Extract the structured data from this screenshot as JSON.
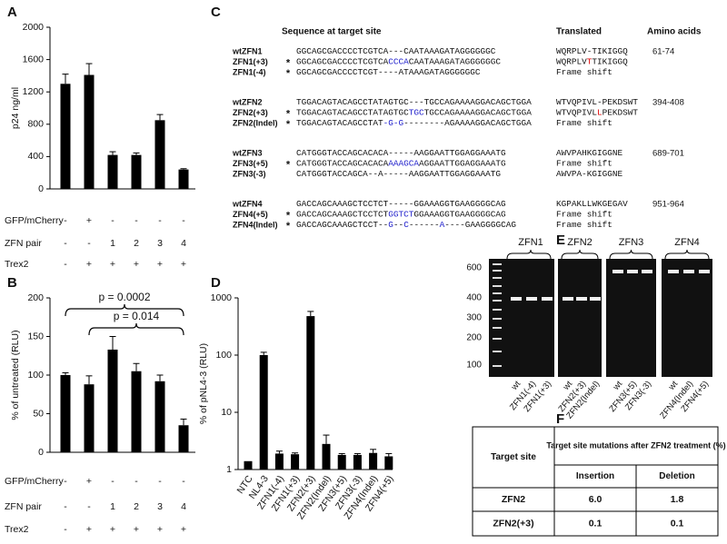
{
  "chart_data": [
    {
      "panel": "A",
      "type": "bar",
      "ylabel": "p24 ng/ml",
      "color": "#000000",
      "values": [
        1300,
        1410,
        420,
        420,
        850,
        240
      ],
      "errors": [
        120,
        140,
        40,
        25,
        70,
        10
      ],
      "ylim": [
        0,
        2000
      ],
      "yticks": [
        0,
        400,
        800,
        1200,
        1600,
        2000
      ],
      "conditions": [
        {
          "name": "GFP/mCherry",
          "values": [
            "-",
            "+",
            "-",
            "-",
            "-",
            "-"
          ]
        },
        {
          "name": "ZFN pair",
          "values": [
            "-",
            "-",
            "1",
            "2",
            "3",
            "4"
          ]
        },
        {
          "name": "Trex2",
          "values": [
            "-",
            "+",
            "+",
            "+",
            "+",
            "+"
          ]
        }
      ]
    },
    {
      "panel": "B",
      "type": "bar",
      "ylabel": "% of untreated (RLU)",
      "color": "#000000",
      "values": [
        100,
        88,
        133,
        105,
        92,
        35
      ],
      "errors": [
        3,
        11,
        17,
        10,
        8,
        8
      ],
      "ylim": [
        0,
        200
      ],
      "yticks": [
        0,
        50,
        100,
        150,
        200
      ],
      "brackets": [
        {
          "text": "p = 0.0002",
          "from": 0,
          "to": 5
        },
        {
          "text": "p = 0.014",
          "from": 1,
          "to": 5
        }
      ],
      "conditions": [
        {
          "name": "GFP/mCherry",
          "values": [
            "-",
            "+",
            "-",
            "-",
            "-",
            "-"
          ]
        },
        {
          "name": "ZFN pair",
          "values": [
            "-",
            "-",
            "1",
            "2",
            "3",
            "4"
          ]
        },
        {
          "name": "Trex2",
          "values": [
            "-",
            "+",
            "+",
            "+",
            "+",
            "+"
          ]
        }
      ]
    },
    {
      "panel": "D",
      "type": "bar",
      "ylabel": "% of pNL4-3 (RLU)",
      "color": "#000000",
      "log_scale": true,
      "categories": [
        "NTC",
        "NL4-3",
        "ZFN1(-4)",
        "ZFN1(+3)",
        "ZFN2(+3)",
        "ZFN2(Indel)",
        "ZFN3(+5)",
        "ZFN3(-3)",
        "ZFN4(Indel)",
        "ZFN4(+5)"
      ],
      "values": [
        1.4,
        100,
        1.9,
        1.85,
        480,
        2.8,
        1.8,
        1.8,
        1.95,
        1.7
      ],
      "errors": [
        null,
        12,
        0.2,
        0.1,
        100,
        1.2,
        0.1,
        0.1,
        0.3,
        0.2
      ],
      "ylim": [
        1,
        1000
      ],
      "yticks": [
        1,
        10,
        100,
        1000
      ]
    }
  ],
  "sequences": {
    "panel": "C",
    "headers": [
      "Sequence at target site",
      "Translated",
      "Amino acids"
    ],
    "groups": [
      {
        "rows": [
          {
            "name": "wtZFN1",
            "sequence": [
              "GGCAGCGACCCCTCGTCA---CAATAAAGATAGGGGGGC"
            ],
            "translated": [
              "WQRPLV-TIKIGGQ"
            ],
            "range": "61-74"
          },
          {
            "name": "ZFN1(+3)",
            "star": "*",
            "sequence": [
              "GGCAGCGACCCCTCGTCA",
              {
                "text": "CCCA",
                "color": "#2222cc"
              },
              "CAATAAAGATAGGGGGGC"
            ],
            "translated": [
              "WQRPLV",
              {
                "text": "T",
                "color": "#e00000"
              },
              "TIKIGGQ"
            ]
          },
          {
            "name": "ZFN1(-4)",
            "star": "*",
            "sequence": [
              "GGCAGCGACCCCTCGT----ATAAAGATAGGGGGGC"
            ],
            "translated": [
              "Frame shift"
            ]
          }
        ]
      },
      {
        "rows": [
          {
            "name": "wtZFN2",
            "sequence": [
              "TGGACAGTACAGCCTATAGTGC---TGCCAGAAAAGGACAGCTGGA"
            ],
            "translated": [
              "WTVQPIVL-PEKDSWT"
            ],
            "range": "394-408"
          },
          {
            "name": "ZFN2(+3)",
            "star": "*",
            "sequence": [
              "TGGACAGTACAGCCTATAGTGC",
              {
                "text": "TGC",
                "color": "#2222cc"
              },
              "TGCCAGAAAAGGACAGCTGGA"
            ],
            "translated": [
              "WTVQPIVL",
              {
                "text": "L",
                "color": "#e00000"
              },
              "PEKDSWT"
            ]
          },
          {
            "name": "ZFN2(Indel)",
            "star": "*",
            "sequence": [
              "TGGACAGTACAGCCTAT",
              {
                "text": "-G-G",
                "color": "#2222cc"
              },
              "--------AGAAAAGGACAGCTGGA"
            ],
            "translated": [
              "Frame shift"
            ]
          }
        ]
      },
      {
        "rows": [
          {
            "name": "wtZFN3",
            "sequence": [
              "CATGGGTACCAGCACACA-----AAGGAATTGGAGGAAATG"
            ],
            "translated": [
              "AWVPAHKGIGGNE"
            ],
            "range": "689-701"
          },
          {
            "name": "ZFN3(+5)",
            "star": "*",
            "sequence": [
              "CATGGGTACCAGCACACA",
              {
                "text": "AAAGCA",
                "color": "#2222cc"
              },
              "AGGAATTGGAGGAAATG"
            ],
            "translated": [
              "Frame shift"
            ]
          },
          {
            "name": "ZFN3(-3)",
            "sequence": [
              "CATGGGTACCAGCA--A-----AAGGAATTGGAGGAAATG"
            ],
            "translated": [
              "AWVPA-KGIGGNE"
            ]
          }
        ]
      },
      {
        "rows": [
          {
            "name": "wtZFN4",
            "sequence": [
              "GACCAGCAAAGCTCCTCT-----GGAAAGGTGAAGGGGCAG"
            ],
            "translated": [
              "KGPAKLLWKGEGAV"
            ],
            "range": "951-964"
          },
          {
            "name": "ZFN4(+5)",
            "star": "*",
            "sequence": [
              "GACCAGCAAAGCTCCTCT",
              {
                "text": "GGTCT",
                "color": "#2222cc"
              },
              "GGAAAGGTGAAGGGGCAG"
            ],
            "translated": [
              "Frame shift"
            ]
          },
          {
            "name": "ZFN4(Indel)",
            "star": "*",
            "sequence": [
              "GACCAGCAAAGCTCCT--",
              {
                "text": "G",
                "color": "#2222cc"
              },
              "--",
              {
                "text": "C",
                "color": "#2222cc"
              },
              "------",
              {
                "text": "A",
                "color": "#2222cc"
              },
              "----GAAGGGGCAG"
            ],
            "translated": [
              "Frame shift"
            ]
          }
        ]
      }
    ]
  },
  "gel": {
    "panel": "E",
    "ladder": [
      600,
      400,
      300,
      200,
      100
    ],
    "groups": [
      {
        "title": "ZFN1",
        "lanes": [
          "wt",
          "ZFN1(-4)",
          "ZFN1(+3)"
        ]
      },
      {
        "title": "ZFN2",
        "lanes": [
          "wt",
          "ZFN2(+3)",
          "ZFN2(Indel)"
        ]
      },
      {
        "title": "ZFN3",
        "lanes": [
          "wt",
          "ZFN3(+5)",
          "ZFN3(-3)"
        ]
      },
      {
        "title": "ZFN4",
        "lanes": [
          "wt",
          "ZFN4(Indel)",
          "ZFN4(+5)"
        ]
      }
    ]
  },
  "table": {
    "panel": "F",
    "col_header": "Target site",
    "group_header": "Target site mutations after ZFN2 treatment (%)",
    "sub_headers": [
      "Insertion",
      "Deletion"
    ],
    "rows": [
      [
        "ZFN2",
        "6.0",
        "1.8"
      ],
      [
        "ZFN2(+3)",
        "0.1",
        "0.1"
      ]
    ]
  }
}
